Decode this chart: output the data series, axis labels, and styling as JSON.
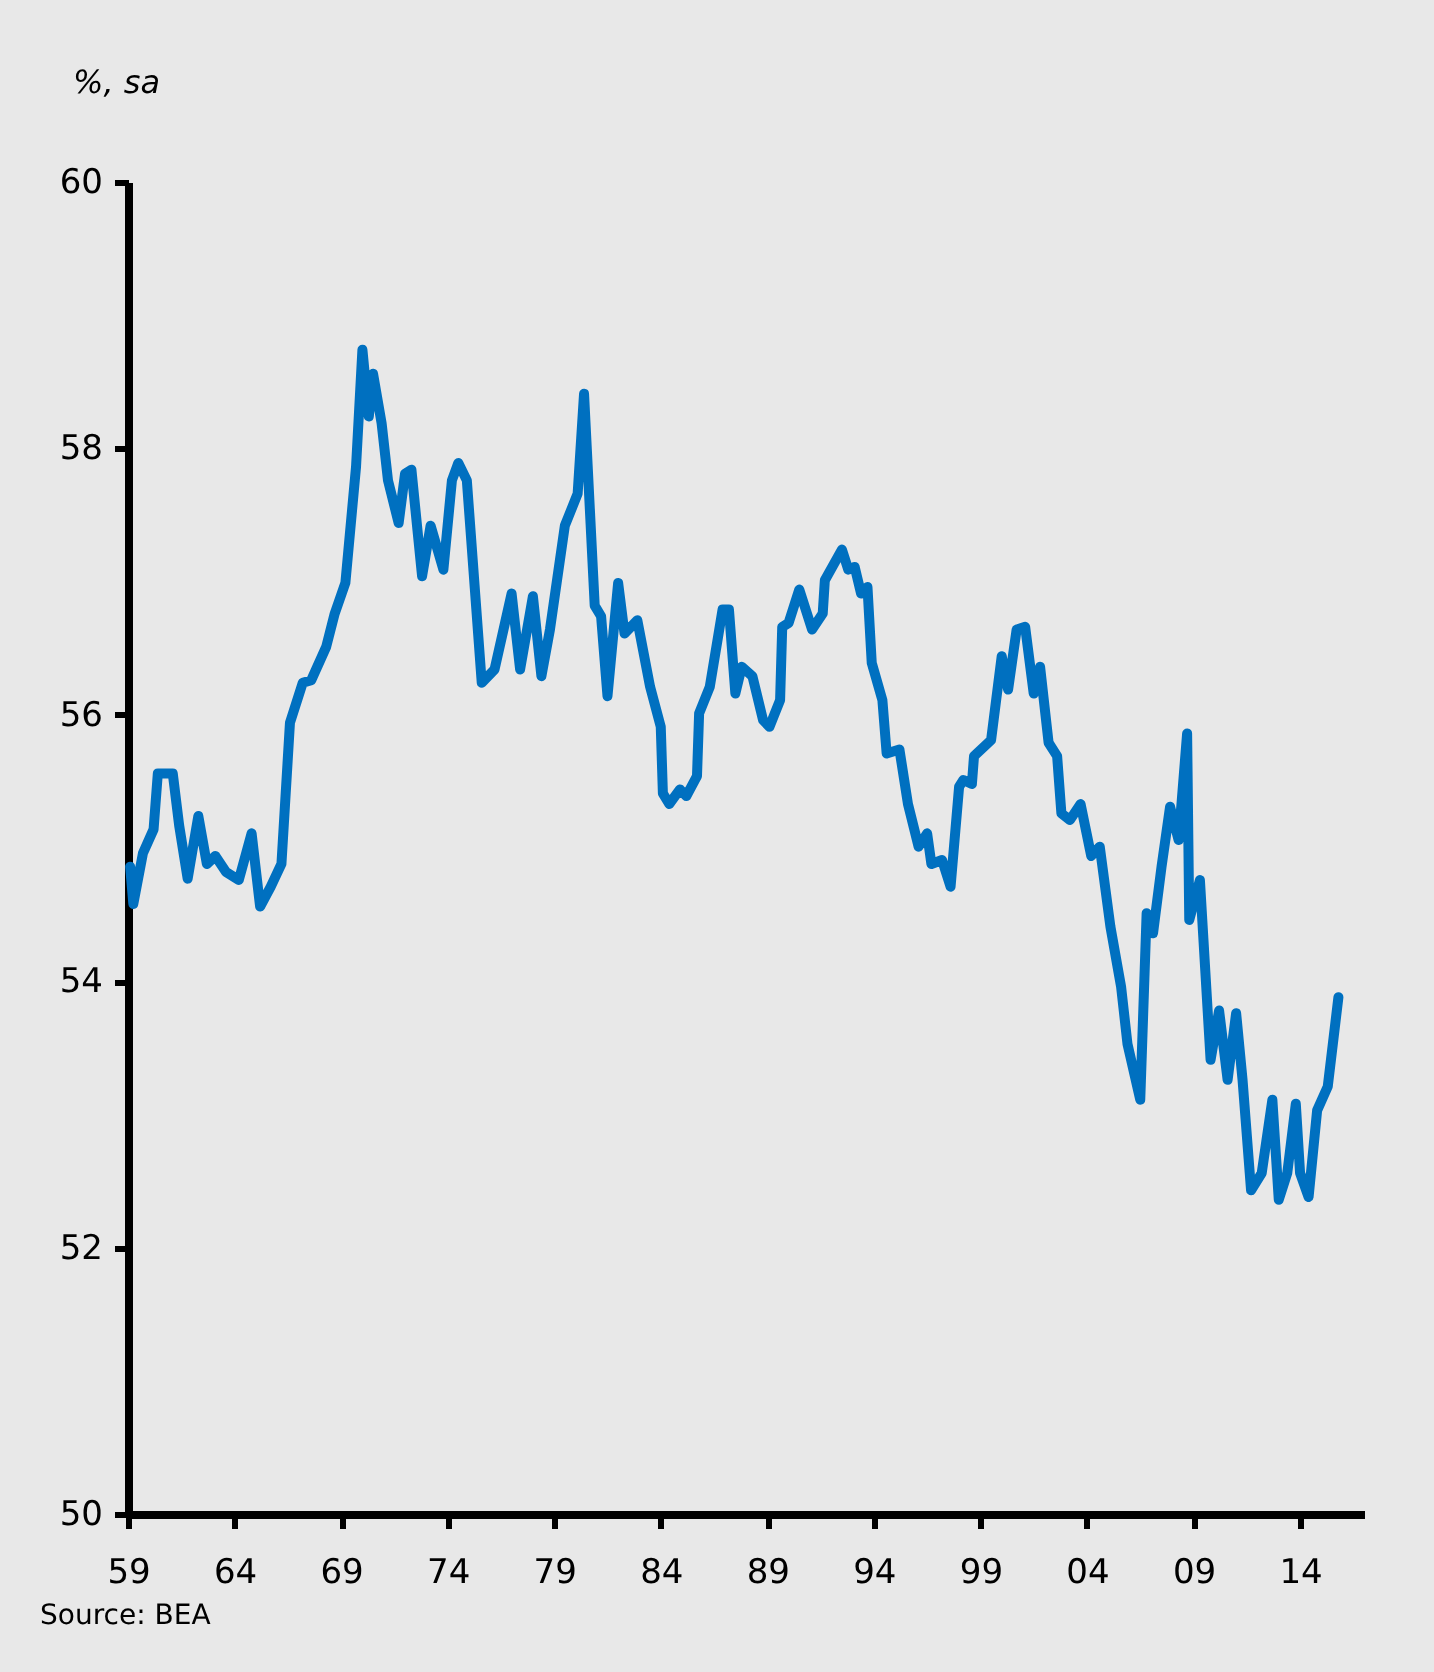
{
  "chart_data": {
    "type": "line",
    "ylabel": "%, sa",
    "annotations": [
      "Source: BEA"
    ],
    "x": [
      1959.1,
      1959.25,
      1959.7,
      1960.2,
      1960.4,
      1961.1,
      1961.4,
      1961.8,
      1962.3,
      1962.7,
      1963.1,
      1963.6,
      1964.2,
      1964.8,
      1965.2,
      1965.7,
      1966.2,
      1966.6,
      1967.2,
      1967.6,
      1968.3,
      1968.7,
      1969.2,
      1969.7,
      1970.0,
      1970.3,
      1970.5,
      1970.9,
      1971.2,
      1971.7,
      1972.0,
      1972.3,
      1972.8,
      1973.2,
      1973.8,
      1974.2,
      1974.5,
      1974.9,
      1975.6,
      1976.2,
      1977.0,
      1977.4,
      1978.0,
      1978.4,
      1978.8,
      1979.5,
      1980.1,
      1980.4,
      1980.9,
      1981.2,
      1981.5,
      1982.0,
      1982.3,
      1982.9,
      1983.5,
      1984.0,
      1984.1,
      1984.4,
      1984.9,
      1985.2,
      1985.7,
      1985.8,
      1986.3,
      1986.9,
      1987.2,
      1987.5,
      1987.8,
      1988.3,
      1988.8,
      1989.1,
      1989.6,
      1989.7,
      1990.0,
      1990.5,
      1991.1,
      1991.6,
      1991.7,
      1992.5,
      1992.8,
      1993.1,
      1993.4,
      1993.7,
      1993.9,
      1994.4,
      1994.6,
      1995.2,
      1995.6,
      1996.1,
      1996.5,
      1996.7,
      1997.2,
      1997.6,
      1998.0,
      1998.2,
      1998.6,
      1998.7,
      1999.5,
      2000.0,
      2000.3,
      2000.7,
      2001.1,
      2001.5,
      2001.8,
      2002.2,
      2002.6,
      2002.8,
      2003.2,
      2003.7,
      2004.2,
      2004.6,
      2005.1,
      2005.6,
      2005.9,
      2006.5,
      2006.8,
      2007.1,
      2007.5,
      2007.9,
      2008.3,
      2008.7,
      2008.8,
      2009.3,
      2009.8,
      2010.2,
      2010.6,
      2011.0,
      2011.3,
      2011.7,
      2012.2,
      2012.7,
      2013.0,
      2013.4,
      2013.8,
      2014.0,
      2014.4,
      2014.8,
      2015.3,
      2015.8
    ],
    "series": [
      {
        "color": "#0070c0",
        "values": [
          54.86,
          54.58,
          54.96,
          55.14,
          55.56,
          55.56,
          55.17,
          54.77,
          55.24,
          54.88,
          54.94,
          54.82,
          54.76,
          55.11,
          54.56,
          54.71,
          54.88,
          55.94,
          56.24,
          56.26,
          56.51,
          56.76,
          56.99,
          57.86,
          58.74,
          58.24,
          58.56,
          58.19,
          57.76,
          57.44,
          57.81,
          57.84,
          57.04,
          57.42,
          57.09,
          57.76,
          57.89,
          57.76,
          56.24,
          56.34,
          56.91,
          56.34,
          56.89,
          56.29,
          56.64,
          57.42,
          57.66,
          58.41,
          56.82,
          56.74,
          56.14,
          56.99,
          56.61,
          56.71,
          56.21,
          55.91,
          55.41,
          55.33,
          55.44,
          55.39,
          55.54,
          56.01,
          56.21,
          56.79,
          56.79,
          56.16,
          56.36,
          56.29,
          55.96,
          55.91,
          56.11,
          56.66,
          56.69,
          56.94,
          56.64,
          56.76,
          57.01,
          57.24,
          57.09,
          57.11,
          56.91,
          56.96,
          56.39,
          56.11,
          55.71,
          55.74,
          55.33,
          55.01,
          55.11,
          54.88,
          54.91,
          54.71,
          55.46,
          55.51,
          55.48,
          55.69,
          55.81,
          56.44,
          56.19,
          56.64,
          56.66,
          56.16,
          56.36,
          55.79,
          55.69,
          55.26,
          55.21,
          55.33,
          54.94,
          55.01,
          54.41,
          53.96,
          53.53,
          53.11,
          54.51,
          54.36,
          54.86,
          55.31,
          55.06,
          55.86,
          54.46,
          54.76,
          53.41,
          53.78,
          53.26,
          53.76,
          53.26,
          52.43,
          52.56,
          53.11,
          52.36,
          52.56,
          53.08,
          52.56,
          52.38,
          53.03,
          53.21,
          53.88
        ]
      }
    ],
    "xlim": [
      1959,
      2017
    ],
    "xticks": [
      {
        "value": 1959,
        "label": "59"
      },
      {
        "value": 1964,
        "label": "64"
      },
      {
        "value": 1969,
        "label": "69"
      },
      {
        "value": 1974,
        "label": "74"
      },
      {
        "value": 1979,
        "label": "79"
      },
      {
        "value": 1984,
        "label": "84"
      },
      {
        "value": 1989,
        "label": "89"
      },
      {
        "value": 1994,
        "label": "94"
      },
      {
        "value": 1999,
        "label": "99"
      },
      {
        "value": 2004,
        "label": "04"
      },
      {
        "value": 2009,
        "label": "09"
      },
      {
        "value": 2014,
        "label": "14"
      }
    ],
    "ylim": [
      50,
      60
    ],
    "yticks": [
      50,
      52,
      54,
      56,
      58,
      60
    ],
    "grid": false,
    "marker": "none",
    "line_style": "solid"
  }
}
